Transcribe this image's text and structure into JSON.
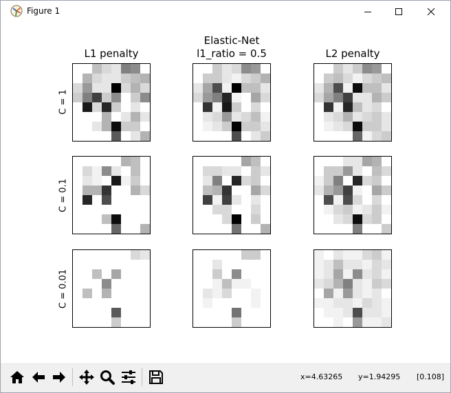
{
  "window": {
    "title": "Figure 1",
    "icon": "matplotlib-figure-icon",
    "controls": [
      "minimize-icon",
      "maximize-icon",
      "close-icon"
    ]
  },
  "figure": {
    "column_titles": [
      "L1 penalty",
      "Elastic-Net\nl1_ratio = 0.5",
      "L2 penalty"
    ],
    "row_labels": [
      "C = 1",
      "C = 0.1",
      "C = 0.01"
    ],
    "colormap": "binary",
    "matrices": [
      [
        [
          [
            0,
            0,
            0.25,
            0.15,
            0.1,
            0.5,
            0.45,
            0
          ],
          [
            0,
            0.3,
            0.15,
            0.1,
            0.1,
            0.2,
            0.25,
            0.3
          ],
          [
            0.15,
            0.4,
            0.1,
            0.1,
            1,
            0.15,
            0.3,
            0.15
          ],
          [
            0.2,
            0.5,
            0.75,
            0.2,
            0.45,
            0,
            0.2,
            0.45
          ],
          [
            0,
            0.9,
            0.15,
            0.85,
            0.2,
            0,
            0.1,
            0
          ],
          [
            0,
            0,
            0,
            0.3,
            0,
            0.1,
            0.3,
            0.1
          ],
          [
            0,
            0,
            0.1,
            0.3,
            0.95,
            0.2,
            0.2,
            0
          ],
          [
            0,
            0,
            0,
            0,
            0.65,
            0,
            0.1,
            0.3
          ]
        ],
        [
          [
            0,
            0,
            0.2,
            0.1,
            0.15,
            0.45,
            0.4,
            0
          ],
          [
            0,
            0.2,
            0.2,
            0.1,
            0.05,
            0.15,
            0.2,
            0.3
          ],
          [
            0.1,
            0.35,
            0.7,
            0.05,
            1,
            0.25,
            0.25,
            0.1
          ],
          [
            0.15,
            0.4,
            0.5,
            0.85,
            0.05,
            0,
            0.35,
            0.15
          ],
          [
            0,
            0.8,
            0.05,
            0.9,
            0.2,
            0,
            0.15,
            0
          ],
          [
            0,
            0.1,
            0.15,
            0.4,
            0.1,
            0.15,
            0.25,
            0.05
          ],
          [
            0,
            0.05,
            0.1,
            0.2,
            1,
            0.2,
            0.2,
            0.1
          ],
          [
            0,
            0,
            0,
            0,
            0.7,
            0,
            0.1,
            0.2
          ]
        ],
        [
          [
            0,
            0,
            0.2,
            0.1,
            0.2,
            0.45,
            0.4,
            0
          ],
          [
            0,
            0.2,
            0.25,
            0.15,
            0.05,
            0.15,
            0.2,
            0.25
          ],
          [
            0.1,
            0.3,
            0.7,
            0.05,
            0.95,
            0.25,
            0.25,
            0.1
          ],
          [
            0.15,
            0.35,
            0.5,
            0.75,
            0.1,
            0.1,
            0.3,
            0.2
          ],
          [
            0,
            0.8,
            0.05,
            0.85,
            0.25,
            0.1,
            0.15,
            0
          ],
          [
            0,
            0.1,
            0.15,
            0.3,
            0.1,
            0.15,
            0.2,
            0.1
          ],
          [
            0,
            0.05,
            0.1,
            0.15,
            0.95,
            0.2,
            0.2,
            0.1
          ],
          [
            0,
            0,
            0,
            0,
            0.6,
            0.05,
            0.15,
            0.2
          ]
        ]
      ],
      [
        [
          [
            0,
            0,
            0,
            0,
            0,
            0.3,
            0.25,
            0
          ],
          [
            0,
            0.15,
            0.05,
            0.45,
            0.1,
            0,
            0.25,
            0
          ],
          [
            0,
            0.1,
            0.05,
            0,
            0.9,
            0.05,
            0.2,
            0
          ],
          [
            0,
            0.3,
            0.3,
            0.8,
            0,
            0,
            0.3,
            0.15
          ],
          [
            0,
            0.85,
            0,
            0.7,
            0,
            0,
            0,
            0
          ],
          [
            0,
            0,
            0,
            0,
            0,
            0,
            0,
            0
          ],
          [
            0,
            0,
            0,
            0.25,
            0.95,
            0,
            0,
            0
          ],
          [
            0,
            0,
            0,
            0,
            0.6,
            0,
            0,
            0.3
          ]
        ],
        [
          [
            0,
            0,
            0,
            0,
            0,
            0.35,
            0.25,
            0
          ],
          [
            0,
            0.15,
            0.15,
            0.1,
            0.1,
            0,
            0.2,
            0.1
          ],
          [
            0,
            0.1,
            0.5,
            0,
            0.85,
            0.15,
            0.2,
            0
          ],
          [
            0,
            0.25,
            0.3,
            0.8,
            0,
            0,
            0.35,
            0.15
          ],
          [
            0,
            0.75,
            0.05,
            0.75,
            0.1,
            0,
            0.1,
            0
          ],
          [
            0,
            0,
            0.15,
            0.15,
            0,
            0,
            0.15,
            0
          ],
          [
            0,
            0,
            0,
            0.15,
            1,
            0,
            0.2,
            0
          ],
          [
            0,
            0,
            0,
            0,
            0.55,
            0,
            0,
            0.3
          ]
        ],
        [
          [
            0,
            0,
            0,
            0.1,
            0.1,
            0.35,
            0.3,
            0
          ],
          [
            0,
            0.2,
            0.2,
            0.4,
            0.1,
            0,
            0.25,
            0.15
          ],
          [
            0.05,
            0.2,
            0.5,
            0,
            0.85,
            0.15,
            0.2,
            0
          ],
          [
            0.1,
            0.3,
            0.4,
            0.75,
            0.05,
            0,
            0.35,
            0.2
          ],
          [
            0,
            0.7,
            0.05,
            0.7,
            0.15,
            0,
            0.15,
            0
          ],
          [
            0,
            0.05,
            0.15,
            0.2,
            0.05,
            0.1,
            0.2,
            0.05
          ],
          [
            0,
            0,
            0.1,
            0.15,
            0.95,
            0.15,
            0.2,
            0
          ],
          [
            0,
            0,
            0,
            0,
            0.5,
            0,
            0,
            0.2
          ]
        ]
      ],
      [
        [
          [
            0,
            0,
            0,
            0,
            0,
            0,
            0.15,
            0.1
          ],
          [
            0,
            0,
            0,
            0,
            0,
            0,
            0,
            0
          ],
          [
            0,
            0,
            0.25,
            0,
            0.35,
            0,
            0,
            0
          ],
          [
            0,
            0,
            0,
            0.45,
            0,
            0,
            0,
            0
          ],
          [
            0,
            0.25,
            0,
            0.3,
            0,
            0,
            0,
            0
          ],
          [
            0,
            0,
            0,
            0,
            0,
            0,
            0,
            0
          ],
          [
            0,
            0,
            0,
            0,
            0.65,
            0,
            0,
            0
          ],
          [
            0,
            0,
            0,
            0,
            0.2,
            0,
            0,
            0
          ]
        ],
        [
          [
            0,
            0,
            0,
            0,
            0,
            0.2,
            0.2,
            0
          ],
          [
            0,
            0,
            0.1,
            0,
            0,
            0,
            0,
            0
          ],
          [
            0,
            0,
            0.2,
            0,
            0.45,
            0,
            0,
            0
          ],
          [
            0,
            0,
            0.05,
            0.25,
            0.05,
            0.05,
            0,
            0
          ],
          [
            0,
            0.1,
            0.05,
            0.15,
            0,
            0,
            0.05,
            0
          ],
          [
            0,
            0.05,
            0,
            0,
            0,
            0,
            0.05,
            0
          ],
          [
            0,
            0,
            0,
            0,
            0.55,
            0,
            0,
            0
          ],
          [
            0,
            0,
            0,
            0,
            0.2,
            0,
            0,
            0
          ]
        ],
        [
          [
            0.05,
            0,
            0.1,
            0.05,
            0.05,
            0.15,
            0.2,
            0.05
          ],
          [
            0.05,
            0.1,
            0.25,
            0.1,
            0.1,
            0.05,
            0.15,
            0.1
          ],
          [
            0.05,
            0.1,
            0.35,
            0.05,
            0.45,
            0.1,
            0.15,
            0.05
          ],
          [
            0.1,
            0.15,
            0.3,
            0.5,
            0.1,
            0.05,
            0.2,
            0.15
          ],
          [
            0,
            0.35,
            0.05,
            0.4,
            0.1,
            0.05,
            0.1,
            0
          ],
          [
            0.05,
            0.05,
            0.1,
            0.1,
            0.05,
            0.15,
            0.1,
            0.05
          ],
          [
            0,
            0.05,
            0.05,
            0.1,
            0.7,
            0.1,
            0.1,
            0.05
          ],
          [
            0,
            0,
            0.05,
            0,
            0.4,
            0.05,
            0.05,
            0.1
          ]
        ]
      ]
    ]
  },
  "toolbar": {
    "buttons": [
      "home-icon",
      "back-arrow-icon",
      "forward-arrow-icon",
      "pan-move-icon",
      "zoom-magnifier-icon",
      "configure-subplots-icon",
      "save-floppy-icon"
    ],
    "x_readout": "x=4.63265",
    "y_readout": "y=1.94295",
    "value_readout": "[0.108]"
  }
}
